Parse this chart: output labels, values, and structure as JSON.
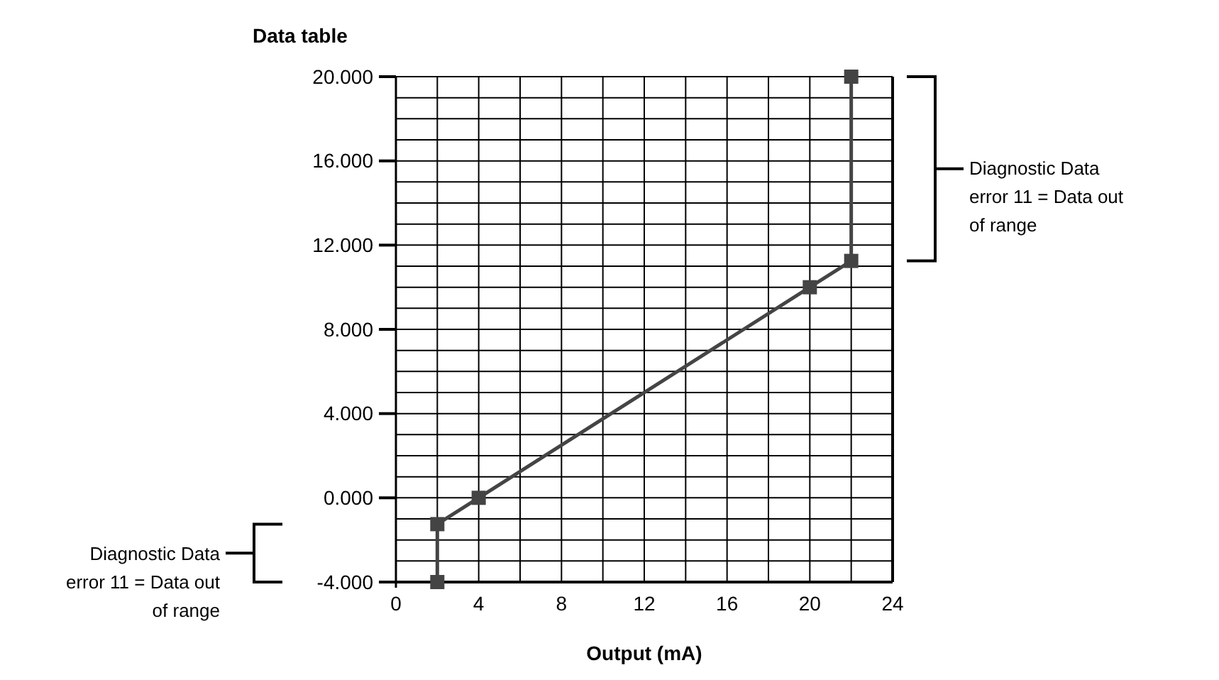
{
  "chart_data": {
    "type": "line",
    "title": "Data table",
    "xlabel": "Output (mA)",
    "x": [
      2,
      2,
      4,
      20,
      22,
      22
    ],
    "series": [
      {
        "color": "#444444",
        "values": [
          -4,
          -1.25,
          0,
          10,
          11.25,
          20
        ]
      }
    ],
    "xlim": [
      0,
      24
    ],
    "xticks": [
      0,
      {
        "value": 2,
        "label": null
      },
      4,
      {
        "value": 6,
        "label": null
      },
      8,
      {
        "value": 10,
        "label": null
      },
      12,
      {
        "value": 14,
        "label": null
      },
      16,
      {
        "value": 18,
        "label": null
      },
      20,
      {
        "value": 22,
        "label": null
      },
      24
    ],
    "ylim": [
      -4,
      20
    ],
    "yticks": [
      {
        "value": -4,
        "label": "-4.000"
      },
      {
        "value": -3,
        "label": null
      },
      {
        "value": -2,
        "label": null
      },
      {
        "value": -1,
        "label": null
      },
      {
        "value": 0,
        "label": "0.000"
      },
      {
        "value": 1,
        "label": null
      },
      {
        "value": 2,
        "label": null
      },
      {
        "value": 3,
        "label": null
      },
      {
        "value": 4,
        "label": "4.000"
      },
      {
        "value": 5,
        "label": null
      },
      {
        "value": 6,
        "label": null
      },
      {
        "value": 7,
        "label": null
      },
      {
        "value": 8,
        "label": "8.000"
      },
      {
        "value": 9,
        "label": null
      },
      {
        "value": 10,
        "label": null
      },
      {
        "value": 11,
        "label": null
      },
      {
        "value": 12,
        "label": "12.000"
      },
      {
        "value": 13,
        "label": null
      },
      {
        "value": 14,
        "label": null
      },
      {
        "value": 15,
        "label": null
      },
      {
        "value": 16,
        "label": "16.000"
      },
      {
        "value": 17,
        "label": null
      },
      {
        "value": 18,
        "label": null
      },
      {
        "value": 19,
        "label": null
      },
      {
        "value": 20,
        "label": "20.000"
      }
    ],
    "grid": true,
    "marker": "square",
    "line_style": "solid",
    "annotations": [
      "Diagnostic Data error 11 = Data out of range",
      "Diagnostic Data error 11 = Data out of range"
    ]
  }
}
